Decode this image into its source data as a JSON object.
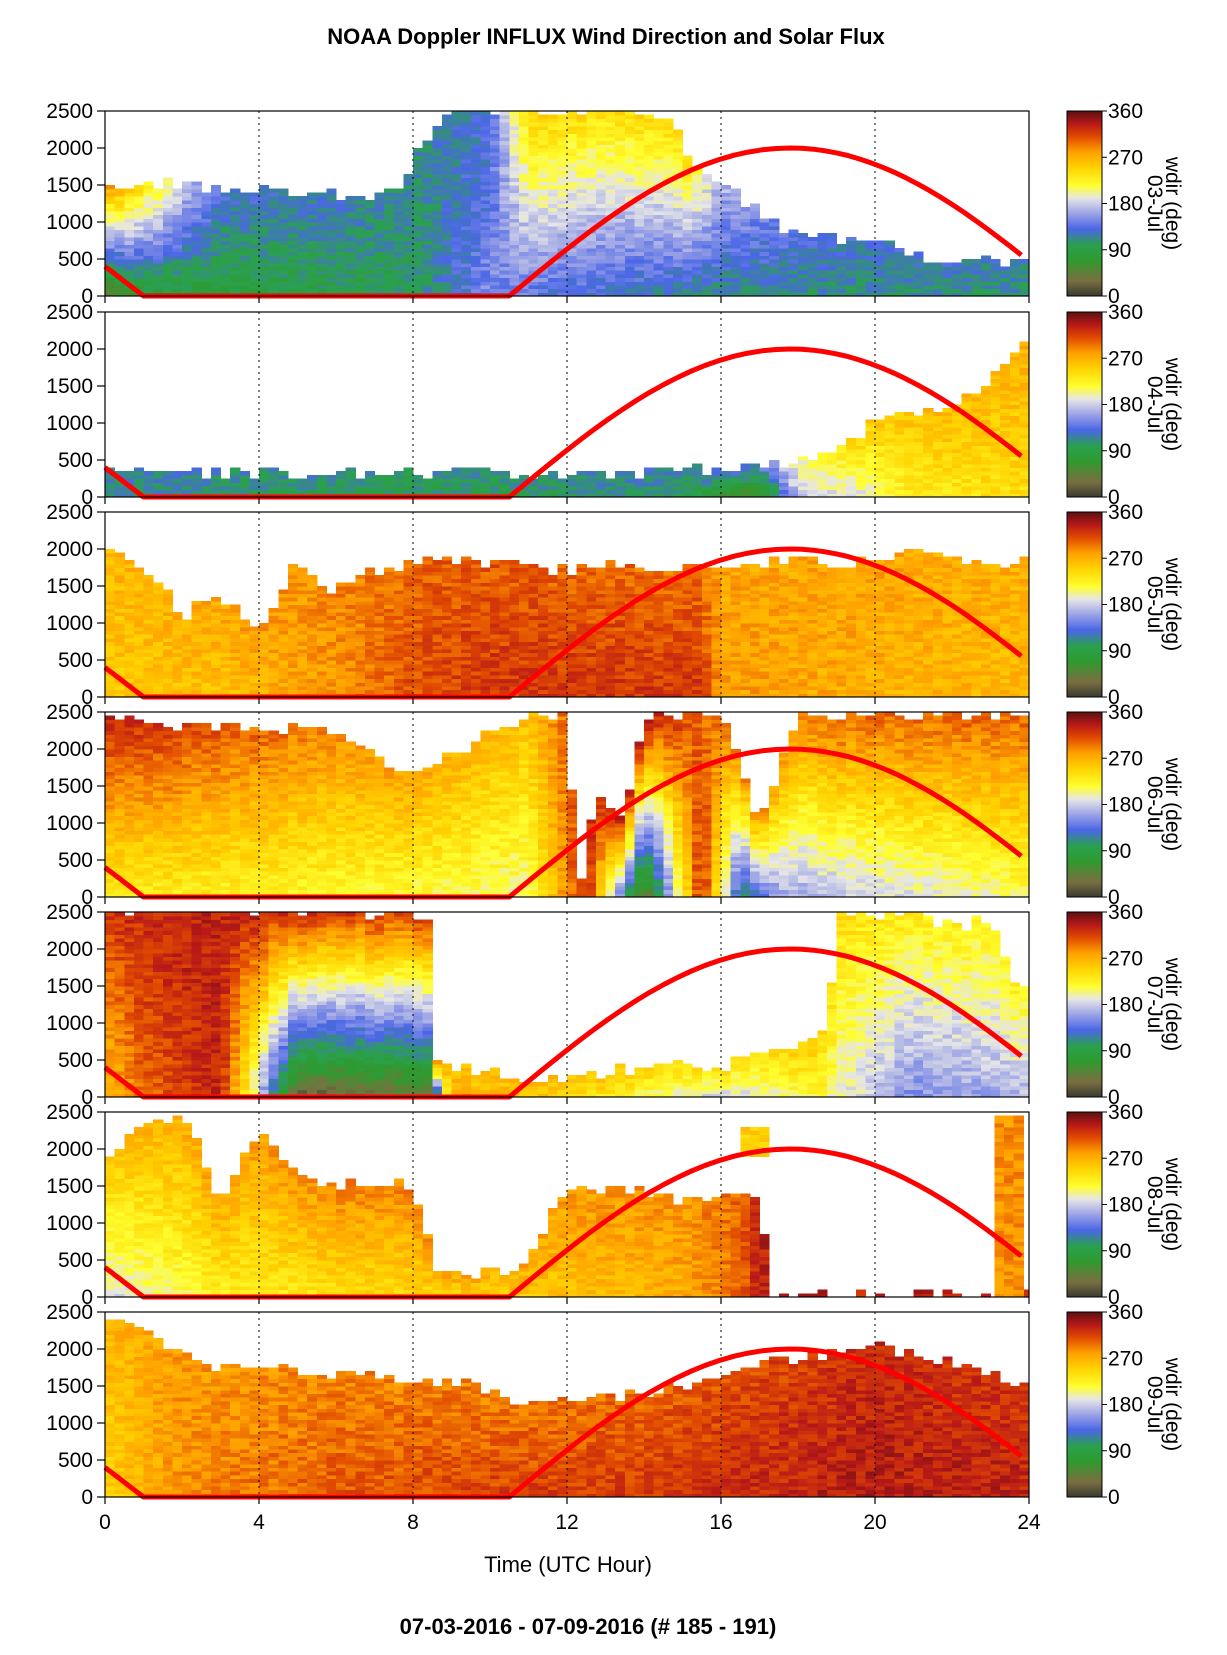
{
  "figure": {
    "title": "NOAA Doppler INFLUX Wind Direction and Solar Flux",
    "footer": "07-03-2016 - 07-09-2016   (# 185 - 191)"
  },
  "chart_data": {
    "type": "heatmap",
    "xlabel": "Time (UTC Hour)",
    "xlim": [
      0,
      24
    ],
    "x_ticks": [
      "0",
      "4",
      "8",
      "12",
      "16",
      "20",
      "24"
    ],
    "x_gridlines": [
      4,
      8,
      12,
      16,
      20,
      24
    ],
    "ylim": [
      0,
      2500
    ],
    "y_ticks": [
      "0",
      "500",
      "1000",
      "1500",
      "2000",
      "2500"
    ],
    "colorbar": {
      "label": "wdir (deg)",
      "ticks": [
        "0",
        "90",
        "180",
        "270",
        "360"
      ],
      "range": [
        0,
        360
      ],
      "stops": [
        {
          "v": 0,
          "color": "#3a3a30"
        },
        {
          "v": 30,
          "color": "#7a7040"
        },
        {
          "v": 70,
          "color": "#2e9a2e"
        },
        {
          "v": 100,
          "color": "#2aa050"
        },
        {
          "v": 130,
          "color": "#4a66e6"
        },
        {
          "v": 160,
          "color": "#9aa2e6"
        },
        {
          "v": 190,
          "color": "#e6e6e6"
        },
        {
          "v": 215,
          "color": "#ffff30"
        },
        {
          "v": 250,
          "color": "#ffd200"
        },
        {
          "v": 280,
          "color": "#ffa000"
        },
        {
          "v": 310,
          "color": "#e04a00"
        },
        {
          "v": 335,
          "color": "#b81818"
        },
        {
          "v": 360,
          "color": "#5a1010"
        }
      ]
    },
    "solar_flux": {
      "color": "#ff0000",
      "segments": [
        [
          [
            0,
            400
          ],
          [
            1,
            0
          ],
          [
            10.5,
            0
          ],
          [
            17.8,
            2000
          ],
          [
            23.8,
            550
          ]
        ]
      ]
    },
    "panels": [
      {
        "day": "03-Jul",
        "top_m": [
          [
            0,
            1500
          ],
          [
            1,
            1500
          ],
          [
            3,
            1450
          ],
          [
            6,
            1350
          ],
          [
            7.8,
            1400
          ],
          [
            8,
            1900
          ],
          [
            9,
            2500
          ],
          [
            11,
            2500
          ],
          [
            13,
            2500
          ],
          [
            14.8,
            2300
          ],
          [
            15,
            1900
          ],
          [
            17,
            1100
          ],
          [
            18,
            800
          ],
          [
            20,
            700
          ],
          [
            21,
            500
          ],
          [
            23.8,
            420
          ]
        ],
        "dir_low": [
          [
            0,
            40
          ],
          [
            1,
            80
          ],
          [
            3,
            85
          ],
          [
            6,
            95
          ],
          [
            8,
            100
          ],
          [
            10,
            150
          ],
          [
            12,
            130
          ],
          [
            14,
            120
          ],
          [
            16,
            110
          ],
          [
            20,
            110
          ],
          [
            23.8,
            110
          ]
        ],
        "dir_high": [
          [
            0,
            280
          ],
          [
            1,
            240
          ],
          [
            3,
            130
          ],
          [
            6,
            120
          ],
          [
            8,
            110
          ],
          [
            10,
            125
          ],
          [
            11,
            250
          ],
          [
            13,
            240
          ],
          [
            15,
            250
          ],
          [
            16,
            170
          ],
          [
            18,
            130
          ],
          [
            20,
            125
          ],
          [
            23.8,
            120
          ]
        ]
      },
      {
        "day": "04-Jul",
        "top_m": [
          [
            0,
            350
          ],
          [
            2,
            300
          ],
          [
            6,
            300
          ],
          [
            10,
            300
          ],
          [
            14,
            300
          ],
          [
            18,
            450
          ],
          [
            19,
            600
          ],
          [
            20,
            1000
          ],
          [
            21,
            1100
          ],
          [
            22,
            1200
          ],
          [
            23,
            1600
          ],
          [
            23.8,
            2100
          ]
        ],
        "dir_low": [
          [
            0,
            110
          ],
          [
            6,
            100
          ],
          [
            10,
            95
          ],
          [
            14,
            110
          ],
          [
            17,
            50
          ],
          [
            18,
            180
          ],
          [
            19.5,
            190
          ],
          [
            21,
            230
          ],
          [
            23.8,
            240
          ]
        ],
        "dir_high": [
          [
            0,
            120
          ],
          [
            6,
            110
          ],
          [
            10,
            110
          ],
          [
            14,
            120
          ],
          [
            17,
            130
          ],
          [
            18,
            200
          ],
          [
            19.5,
            250
          ],
          [
            21,
            260
          ],
          [
            23.8,
            270
          ]
        ]
      },
      {
        "day": "05-Jul",
        "top_m": [
          [
            0,
            1900
          ],
          [
            1,
            1700
          ],
          [
            2,
            1100
          ],
          [
            3,
            1300
          ],
          [
            4,
            900
          ],
          [
            5,
            1800
          ],
          [
            6,
            1400
          ],
          [
            7,
            1700
          ],
          [
            9,
            1800
          ],
          [
            12,
            1700
          ],
          [
            16,
            1800
          ],
          [
            20,
            1800
          ],
          [
            21,
            1900
          ],
          [
            23.8,
            1800
          ]
        ],
        "dir_low": [
          [
            0,
            255
          ],
          [
            3,
            260
          ],
          [
            6,
            280
          ],
          [
            8,
            310
          ],
          [
            10,
            320
          ],
          [
            13,
            320
          ],
          [
            15.5,
            320
          ],
          [
            16,
            280
          ],
          [
            20,
            270
          ],
          [
            23.8,
            265
          ]
        ],
        "dir_high": [
          [
            0,
            265
          ],
          [
            3,
            275
          ],
          [
            6,
            290
          ],
          [
            8,
            300
          ],
          [
            10,
            305
          ],
          [
            13,
            300
          ],
          [
            15.5,
            295
          ],
          [
            16,
            275
          ],
          [
            20,
            275
          ],
          [
            23.8,
            270
          ]
        ]
      },
      {
        "day": "06-Jul",
        "top_m": [
          [
            0,
            2450
          ],
          [
            2,
            2300
          ],
          [
            4,
            2300
          ],
          [
            6,
            2200
          ],
          [
            8,
            1600
          ],
          [
            9,
            1900
          ],
          [
            11,
            2450
          ],
          [
            12,
            2450
          ],
          [
            12.3,
            0
          ],
          [
            12.7,
            1300
          ],
          [
            13.5,
            1000
          ],
          [
            14,
            2400
          ],
          [
            16,
            2450
          ],
          [
            17,
            1000
          ],
          [
            18,
            2400
          ],
          [
            19,
            2450
          ],
          [
            23.8,
            2450
          ]
        ],
        "dir_low": [
          [
            0,
            230
          ],
          [
            4,
            225
          ],
          [
            8,
            215
          ],
          [
            11,
            205
          ],
          [
            12.5,
            330
          ],
          [
            14,
            20
          ],
          [
            15.5,
            330
          ],
          [
            16.5,
            100
          ],
          [
            17.5,
            160
          ],
          [
            19,
            175
          ],
          [
            21,
            190
          ],
          [
            23.8,
            210
          ]
        ],
        "dir_high": [
          [
            0,
            330
          ],
          [
            4,
            300
          ],
          [
            8,
            275
          ],
          [
            11,
            260
          ],
          [
            12.5,
            320
          ],
          [
            14,
            340
          ],
          [
            15.5,
            300
          ],
          [
            16.5,
            290
          ],
          [
            17.5,
            280
          ],
          [
            19,
            300
          ],
          [
            21,
            300
          ],
          [
            23.8,
            300
          ]
        ]
      },
      {
        "day": "07-Jul",
        "top_m": [
          [
            0,
            2500
          ],
          [
            3,
            2500
          ],
          [
            6,
            2500
          ],
          [
            8.5,
            2400
          ],
          [
            8.6,
            500
          ],
          [
            9,
            400
          ],
          [
            10,
            300
          ],
          [
            11,
            200
          ],
          [
            12,
            250
          ],
          [
            14,
            350
          ],
          [
            16,
            400
          ],
          [
            18,
            600
          ],
          [
            18.8,
            900
          ],
          [
            19,
            2500
          ],
          [
            21,
            2400
          ],
          [
            23,
            2300
          ],
          [
            23.8,
            1400
          ]
        ],
        "dir_low": [
          [
            0,
            260
          ],
          [
            1,
            300
          ],
          [
            3,
            330
          ],
          [
            5,
            20
          ],
          [
            7,
            30
          ],
          [
            8.5,
            40
          ],
          [
            9,
            270
          ],
          [
            12,
            250
          ],
          [
            16,
            180
          ],
          [
            18.5,
            220
          ],
          [
            19,
            200
          ],
          [
            21,
            150
          ],
          [
            23.8,
            170
          ]
        ],
        "dir_high": [
          [
            0,
            320
          ],
          [
            2,
            330
          ],
          [
            4,
            330
          ],
          [
            6,
            320
          ],
          [
            8.5,
            310
          ],
          [
            9,
            260
          ],
          [
            12,
            260
          ],
          [
            16,
            240
          ],
          [
            18.5,
            250
          ],
          [
            19,
            240
          ],
          [
            21,
            230
          ],
          [
            23.8,
            225
          ]
        ]
      },
      {
        "day": "08-Jul",
        "top_m": [
          [
            0,
            1900
          ],
          [
            1,
            2300
          ],
          [
            2,
            2500
          ],
          [
            2.5,
            1900
          ],
          [
            3,
            1300
          ],
          [
            4,
            2200
          ],
          [
            5,
            1700
          ],
          [
            6,
            1500
          ],
          [
            7,
            1500
          ],
          [
            8,
            1500
          ],
          [
            8.6,
            350
          ],
          [
            10,
            300
          ],
          [
            10.8,
            300
          ],
          [
            11.5,
            1000
          ],
          [
            12,
            1400
          ],
          [
            14,
            1400
          ],
          [
            15,
            1300
          ],
          [
            16,
            1400
          ],
          [
            17,
            1400
          ],
          [
            17.3,
            0
          ]
        ],
        "dir_low": [
          [
            0,
            185
          ],
          [
            1,
            200
          ],
          [
            3,
            225
          ],
          [
            6,
            240
          ],
          [
            8,
            245
          ],
          [
            10,
            250
          ],
          [
            12,
            260
          ],
          [
            15,
            270
          ],
          [
            16.5,
            300
          ],
          [
            17,
            330
          ]
        ],
        "dir_high": [
          [
            0,
            260
          ],
          [
            1,
            270
          ],
          [
            3,
            275
          ],
          [
            6,
            290
          ],
          [
            8,
            290
          ],
          [
            10,
            270
          ],
          [
            12,
            280
          ],
          [
            15,
            285
          ],
          [
            16.5,
            300
          ],
          [
            17,
            330
          ]
        ],
        "extra_blocks": [
          {
            "x0": 16.5,
            "x1": 17.2,
            "y0": 1900,
            "y1": 2300,
            "dir": 250
          },
          {
            "x0": 23.1,
            "x1": 23.8,
            "y0": 0,
            "y1": 2450,
            "dir": 285
          }
        ]
      },
      {
        "day": "09-Jul",
        "top_m": [
          [
            0,
            2400
          ],
          [
            1,
            2200
          ],
          [
            2,
            1900
          ],
          [
            3,
            1700
          ],
          [
            5,
            1700
          ],
          [
            7,
            1600
          ],
          [
            9,
            1500
          ],
          [
            11,
            1300
          ],
          [
            13,
            1300
          ],
          [
            15,
            1500
          ],
          [
            17,
            1800
          ],
          [
            19,
            1950
          ],
          [
            20,
            2000
          ],
          [
            22,
            1800
          ],
          [
            23,
            1650
          ],
          [
            23.8,
            1500
          ]
        ],
        "dir_low": [
          [
            0,
            250
          ],
          [
            2,
            285
          ],
          [
            6,
            305
          ],
          [
            10,
            315
          ],
          [
            14,
            320
          ],
          [
            18,
            330
          ],
          [
            20,
            335
          ],
          [
            23.8,
            330
          ]
        ],
        "dir_high": [
          [
            0,
            265
          ],
          [
            2,
            280
          ],
          [
            6,
            290
          ],
          [
            10,
            290
          ],
          [
            14,
            300
          ],
          [
            18,
            315
          ],
          [
            20,
            325
          ],
          [
            23.8,
            320
          ]
        ]
      }
    ]
  }
}
